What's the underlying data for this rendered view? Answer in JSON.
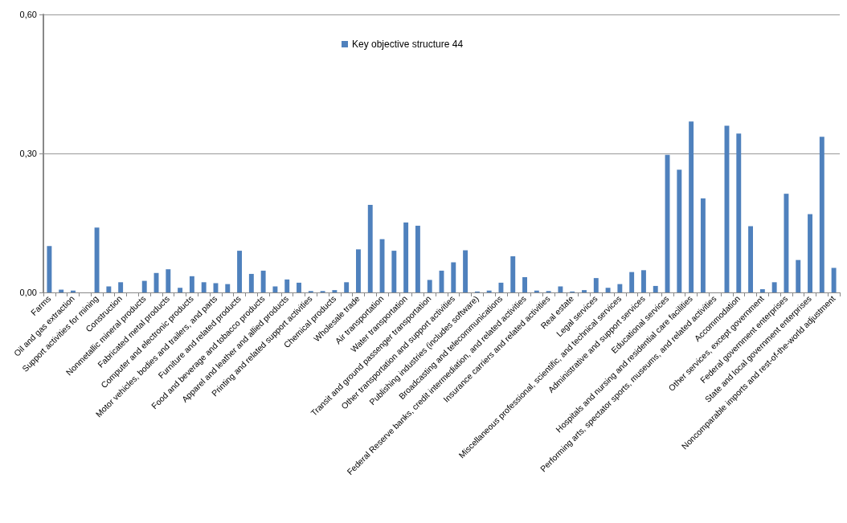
{
  "chart_data": {
    "type": "bar",
    "categories": [
      "Farms",
      null,
      "Oil and gas extraction",
      null,
      "Support activities for mining",
      null,
      "Construction",
      null,
      "Nonmetallic mineral products",
      null,
      "Fabricated metal products",
      null,
      "Computer and electronic products",
      null,
      "Motor vehicles, bodies and trailers, and parts",
      null,
      "Furniture and related products",
      null,
      "Food and beverage and tobacco products",
      null,
      "Apparel and leather and allied products",
      null,
      "Printing and related support activities",
      null,
      "Chemical products",
      null,
      "Wholesale trade",
      null,
      "Air transportation",
      null,
      "Water transportation",
      null,
      "Transit and ground passenger transportation",
      null,
      "Other transportation and support activities",
      null,
      "Publishing industries (includes software)",
      null,
      "Broadcasting and telecommunications",
      null,
      "Federal Reserve banks, credit intermediation, and related activities",
      null,
      "Insurance carriers and related activities",
      null,
      "Real estate",
      null,
      "Legal services",
      null,
      "Miscellaneous professional, scientific, and technical services",
      null,
      "Administrative and support services",
      null,
      "Educational services",
      null,
      "Hospitals and nursing and residential care facilities",
      null,
      "Performing arts, spectator sports, museums, and related activities",
      null,
      "Accommodation",
      null,
      "Other services, except government",
      null,
      "Federal government enterprises",
      null,
      "State and local government enterprises",
      null,
      "Noncomparable imports and rest-of-the-world adjustment"
    ],
    "series": [
      {
        "name": "Key objective structure 44",
        "color": "#4f81bd",
        "values": [
          0.1,
          0.006,
          0.004,
          0,
          0.14,
          0.013,
          0.022,
          0,
          0.025,
          0.042,
          0.05,
          0.01,
          0.035,
          0.022,
          0.02,
          0.018,
          0.09,
          0.04,
          0.047,
          0.013,
          0.028,
          0.021,
          0.003,
          0.003,
          0.005,
          0.022,
          0.093,
          0.189,
          0.115,
          0.09,
          0.151,
          0.144,
          0.027,
          0.047,
          0.065,
          0.091,
          0.002,
          0.004,
          0.021,
          0.078,
          0.033,
          0.004,
          0.003,
          0.013,
          0.002,
          0.005,
          0.031,
          0.01,
          0.018,
          0.044,
          0.048,
          0.014,
          0.297,
          0.265,
          0.369,
          0.203,
          0,
          0.36,
          0.343,
          0.143,
          0.007,
          0.022,
          0.213,
          0.07,
          0.169,
          0.336,
          0.053
        ]
      }
    ],
    "ylim": [
      0,
      0.6
    ],
    "yticks": [
      {
        "value": 0,
        "label": "0,00"
      },
      {
        "value": 0.3,
        "label": "0,30"
      },
      {
        "value": 0.6,
        "label": "0,60"
      }
    ],
    "grid": "y",
    "legend": "top"
  }
}
